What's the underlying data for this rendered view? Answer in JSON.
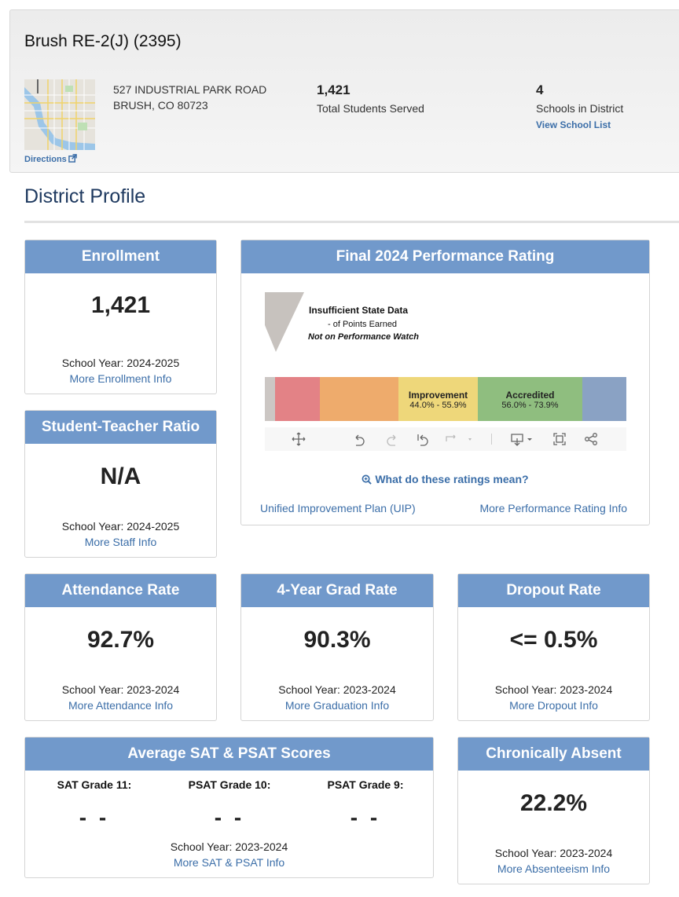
{
  "header": {
    "title": "Brush RE-2(J) (2395)",
    "directions_label": "Directions",
    "address_line1": "527 INDUSTRIAL PARK ROAD",
    "address_line2": "BRUSH, CO 80723",
    "students_value": "1,421",
    "students_label": "Total Students Served",
    "schools_value": "4",
    "schools_label": "Schools in District",
    "schools_link": "View School List"
  },
  "profile": {
    "title": "District Profile"
  },
  "enrollment": {
    "title": "Enrollment",
    "value": "1,421",
    "year": "School Year: 2024-2025",
    "link": "More Enrollment Info"
  },
  "ratio": {
    "title": "Student-Teacher Ratio",
    "value": "N/A",
    "year": "School Year: 2024-2025",
    "link": "More Staff Info"
  },
  "performance": {
    "title": "Final 2024 Performance Rating",
    "rating_line1": "Insufficient State Data",
    "rating_line2": "- of Points Earned",
    "rating_line3": "Not on Performance Watch",
    "bands": [
      {
        "label": "",
        "range": "",
        "color": "#ccc7c4"
      },
      {
        "label": "",
        "range": "",
        "color": "#e38286"
      },
      {
        "label": "",
        "range": "",
        "color": "#eeab6c"
      },
      {
        "label": "Improvement",
        "range": "44.0% - 55.9%",
        "color": "#eed77a"
      },
      {
        "label": "Accredited",
        "range": "56.0% - 73.9%",
        "color": "#8fbe7f"
      },
      {
        "label": "",
        "range": "",
        "color": "#8aa2c4"
      }
    ],
    "ratings_link": "What do these ratings mean?",
    "uip_link": "Unified Improvement Plan (UIP)",
    "more_link": "More Performance Rating Info"
  },
  "attendance": {
    "title": "Attendance Rate",
    "value": "92.7%",
    "year": "School Year: 2023-2024",
    "link": "More Attendance Info"
  },
  "grad": {
    "title": "4-Year Grad Rate",
    "value": "90.3%",
    "year": "School Year: 2023-2024",
    "link": "More Graduation Info"
  },
  "dropout": {
    "title": "Dropout Rate",
    "value": "<= 0.5%",
    "year": "School Year: 2023-2024",
    "link": "More Dropout Info"
  },
  "sat": {
    "title": "Average SAT & PSAT Scores",
    "cols": [
      {
        "label": "SAT Grade 11:",
        "value": "- -"
      },
      {
        "label": "PSAT Grade 10:",
        "value": "- -"
      },
      {
        "label": "PSAT Grade 9:",
        "value": "- -"
      }
    ],
    "year": "School Year: 2023-2024",
    "link": "More SAT & PSAT Info"
  },
  "absent": {
    "title": "Chronically Absent",
    "value": "22.2%",
    "year": "School Year: 2023-2024",
    "link": "More Absenteeism Info"
  }
}
